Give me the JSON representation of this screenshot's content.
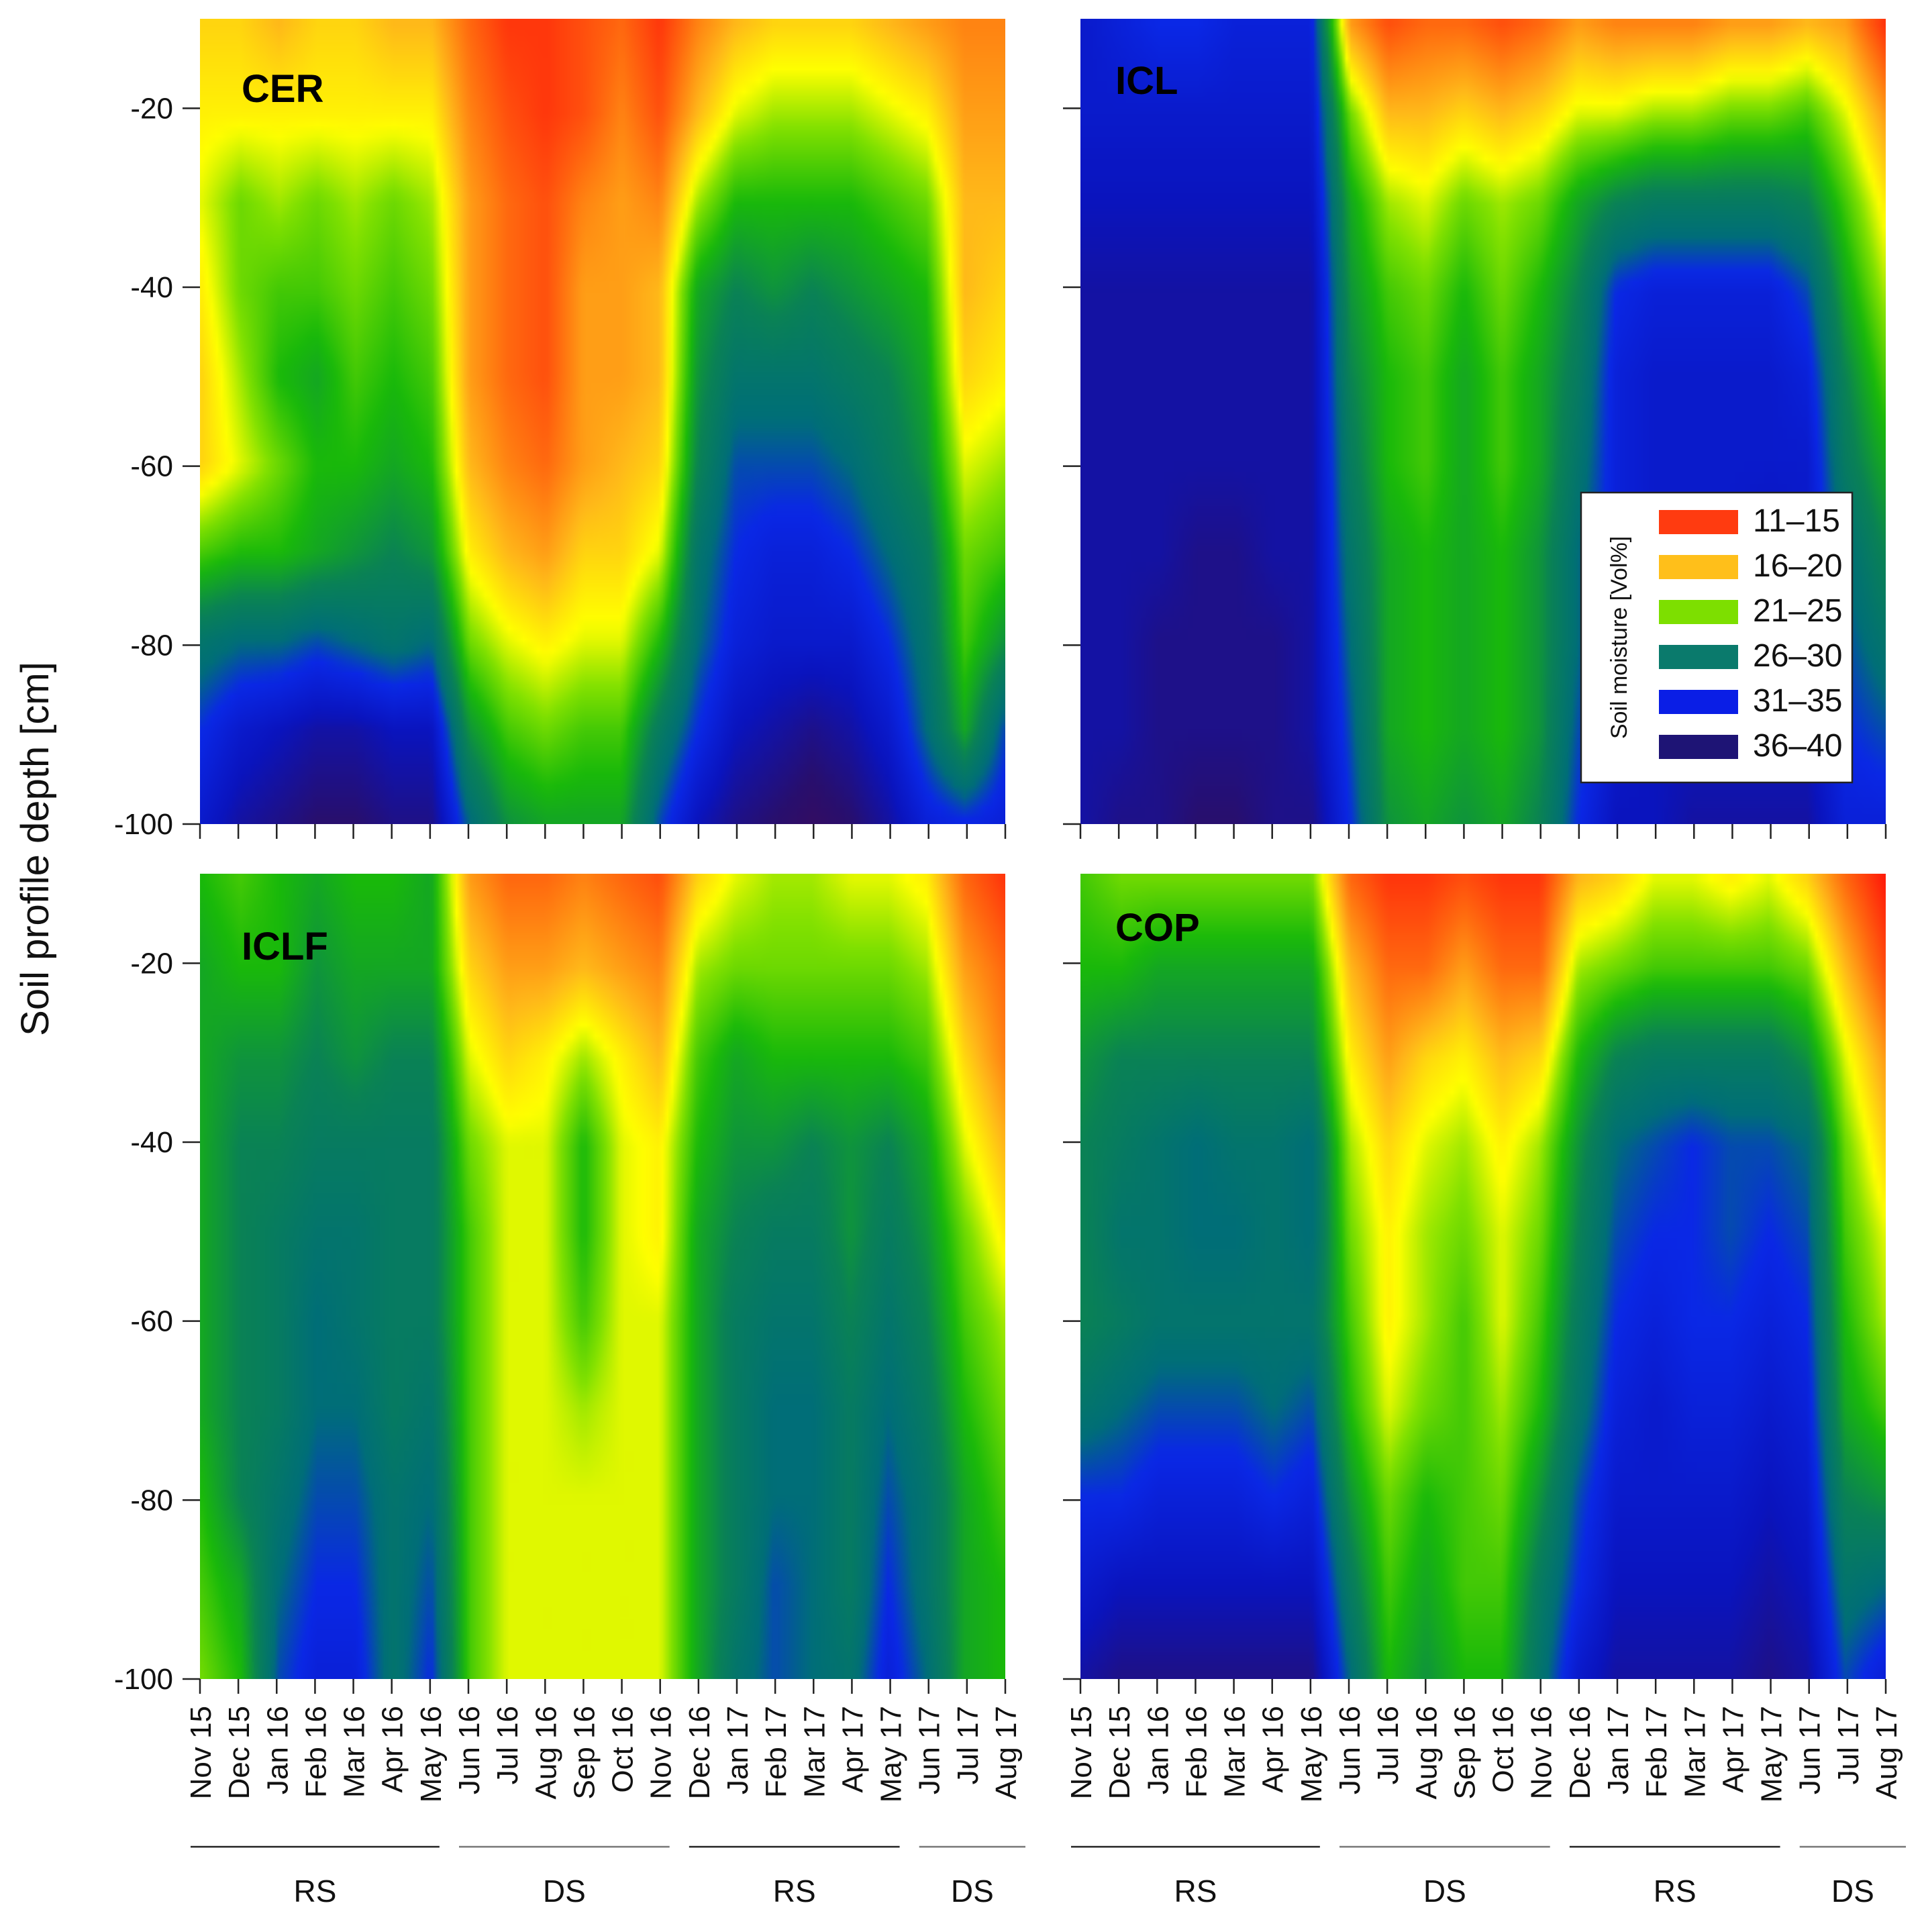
{
  "chart_data": {
    "type": "heatmap",
    "y_axis_title": "Soil profile depth [cm]",
    "yticks": [
      -20,
      -40,
      -60,
      -80,
      -100
    ],
    "ylim": [
      -100,
      -10
    ],
    "depths": [
      -10,
      -20,
      -30,
      -40,
      -50,
      -60,
      -70,
      -80,
      -90,
      -100
    ],
    "months": [
      "Nov 15",
      "Dec 15",
      "Jan 16",
      "Feb 16",
      "Mar 16",
      "Apr 16",
      "May 16",
      "Jun 16",
      "Jul 16",
      "Aug 16",
      "Sep 16",
      "Oct 16",
      "Nov 16",
      "Dec 16",
      "Jan 17",
      "Feb 17",
      "Mar 17",
      "Apr 17",
      "May 17",
      "Jun 17",
      "Jul 17",
      "Aug 17"
    ],
    "seasons": [
      {
        "label": "RS",
        "from": "Nov 15",
        "to": "May 16"
      },
      {
        "label": "DS",
        "from": "Jun 16",
        "to": "Nov 16"
      },
      {
        "label": "RS",
        "from": "Dec 16",
        "to": "May 17"
      },
      {
        "label": "DS",
        "from": "Jun 17",
        "to": "Aug 17"
      }
    ],
    "legend": {
      "title": "Soil moisture [Vol%]",
      "classes": [
        {
          "label": "11–15",
          "color": "#ff3b10"
        },
        {
          "label": "16–20",
          "color": "#ffbf1a"
        },
        {
          "label": "21–25",
          "color": "#7ddf00"
        },
        {
          "label": "26–30",
          "color": "#0a7a6c"
        },
        {
          "label": "31–35",
          "color": "#0a1ee6"
        },
        {
          "label": "36–40",
          "color": "#1e1475"
        }
      ]
    },
    "panels": [
      {
        "name": "CER",
        "values": [
          [
            18,
            18,
            17,
            18,
            18,
            17,
            17,
            14,
            12,
            12,
            13,
            14,
            12,
            15,
            17,
            18,
            18,
            18,
            17,
            16,
            15,
            15
          ],
          [
            19,
            19,
            19,
            19,
            19,
            19,
            19,
            15,
            13,
            12,
            13,
            15,
            13,
            17,
            20,
            21,
            21,
            21,
            20,
            19,
            16,
            16
          ],
          [
            20,
            22,
            21,
            22,
            21,
            22,
            21,
            16,
            14,
            13,
            15,
            16,
            15,
            21,
            24,
            24,
            24,
            24,
            23,
            22,
            17,
            17
          ],
          [
            19,
            22,
            23,
            23,
            22,
            23,
            22,
            16,
            14,
            13,
            16,
            16,
            17,
            25,
            27,
            26,
            27,
            26,
            25,
            24,
            17,
            18
          ],
          [
            18,
            21,
            24,
            25,
            23,
            24,
            23,
            16,
            14,
            13,
            16,
            16,
            17,
            26,
            29,
            29,
            29,
            28,
            27,
            25,
            18,
            19
          ],
          [
            18,
            20,
            22,
            24,
            24,
            25,
            24,
            17,
            15,
            14,
            16,
            17,
            18,
            27,
            31,
            31,
            31,
            30,
            28,
            26,
            20,
            21
          ],
          [
            23,
            24,
            24,
            25,
            26,
            27,
            26,
            19,
            17,
            16,
            18,
            18,
            20,
            29,
            32,
            33,
            33,
            32,
            30,
            28,
            22,
            23
          ],
          [
            29,
            30,
            30,
            31,
            30,
            29,
            30,
            22,
            20,
            19,
            20,
            20,
            24,
            30,
            33,
            34,
            34,
            34,
            32,
            29,
            23,
            26
          ],
          [
            32,
            34,
            35,
            36,
            36,
            35,
            35,
            26,
            23,
            22,
            23,
            23,
            28,
            32,
            35,
            36,
            37,
            36,
            34,
            30,
            25,
            31
          ],
          [
            34,
            36,
            37,
            38,
            38,
            37,
            37,
            30,
            26,
            25,
            25,
            25,
            31,
            35,
            37,
            38,
            39,
            38,
            36,
            33,
            32,
            33
          ]
        ]
      },
      {
        "name": "ICL",
        "values": [
          [
            34,
            33,
            32,
            32,
            33,
            33,
            33,
            16,
            13,
            14,
            14,
            13,
            14,
            16,
            15,
            15,
            15,
            16,
            16,
            17,
            16,
            12
          ],
          [
            34,
            34,
            34,
            34,
            34,
            34,
            34,
            22,
            17,
            17,
            18,
            17,
            18,
            20,
            20,
            21,
            21,
            22,
            22,
            23,
            20,
            16
          ],
          [
            35,
            35,
            35,
            35,
            35,
            35,
            35,
            25,
            21,
            20,
            22,
            21,
            22,
            25,
            27,
            28,
            28,
            28,
            28,
            27,
            23,
            19
          ],
          [
            36,
            36,
            36,
            36,
            36,
            36,
            36,
            26,
            23,
            22,
            24,
            22,
            24,
            27,
            32,
            33,
            33,
            33,
            33,
            31,
            25,
            21
          ],
          [
            36,
            36,
            36,
            36,
            36,
            36,
            36,
            27,
            24,
            23,
            25,
            23,
            25,
            28,
            33,
            34,
            34,
            34,
            34,
            33,
            27,
            23
          ],
          [
            36,
            36,
            36,
            36,
            36,
            36,
            36,
            28,
            24,
            23,
            25,
            23,
            25,
            29,
            33,
            34,
            34,
            34,
            34,
            34,
            28,
            25
          ],
          [
            36,
            36,
            36,
            37,
            37,
            36,
            36,
            29,
            25,
            24,
            25,
            24,
            26,
            30,
            33,
            34,
            34,
            34,
            35,
            34,
            30,
            27
          ],
          [
            36,
            36,
            37,
            37,
            37,
            37,
            36,
            30,
            25,
            24,
            25,
            24,
            26,
            30,
            34,
            34,
            34,
            35,
            35,
            35,
            31,
            29
          ],
          [
            36,
            36,
            37,
            37,
            37,
            37,
            36,
            31,
            25,
            24,
            25,
            24,
            26,
            31,
            34,
            35,
            35,
            35,
            35,
            35,
            32,
            31
          ],
          [
            36,
            37,
            37,
            38,
            38,
            37,
            37,
            32,
            26,
            25,
            26,
            25,
            27,
            32,
            35,
            35,
            36,
            36,
            36,
            36,
            33,
            33
          ]
        ]
      },
      {
        "name": "ICLF",
        "values": [
          [
            24,
            23,
            24,
            25,
            24,
            24,
            25,
            16,
            14,
            14,
            15,
            14,
            13,
            18,
            20,
            21,
            21,
            20,
            20,
            19,
            14,
            12
          ],
          [
            25,
            24,
            24,
            26,
            25,
            25,
            25,
            18,
            16,
            16,
            17,
            16,
            15,
            21,
            22,
            22,
            22,
            22,
            22,
            21,
            16,
            14
          ],
          [
            25,
            26,
            26,
            27,
            26,
            27,
            27,
            20,
            18,
            19,
            21,
            19,
            17,
            23,
            25,
            24,
            24,
            24,
            24,
            23,
            18,
            15
          ],
          [
            25,
            27,
            27,
            28,
            28,
            28,
            28,
            22,
            20,
            20,
            24,
            20,
            19,
            24,
            26,
            26,
            27,
            26,
            27,
            25,
            20,
            17
          ],
          [
            25,
            27,
            28,
            29,
            29,
            28,
            28,
            23,
            20,
            20,
            24,
            20,
            19,
            25,
            27,
            28,
            28,
            26,
            28,
            26,
            22,
            19
          ],
          [
            25,
            27,
            28,
            30,
            29,
            28,
            28,
            23,
            20,
            20,
            23,
            20,
            20,
            25,
            28,
            29,
            29,
            27,
            29,
            27,
            23,
            21
          ],
          [
            25,
            27,
            28,
            30,
            30,
            28,
            29,
            23,
            20,
            20,
            21,
            20,
            20,
            25,
            28,
            30,
            30,
            28,
            30,
            28,
            24,
            22
          ],
          [
            24,
            27,
            29,
            31,
            31,
            29,
            30,
            23,
            20,
            20,
            20,
            20,
            20,
            25,
            28,
            30,
            30,
            28,
            31,
            29,
            25,
            23
          ],
          [
            23,
            25,
            30,
            32,
            32,
            29,
            31,
            23,
            20,
            20,
            20,
            20,
            20,
            25,
            28,
            31,
            30,
            28,
            32,
            29,
            25,
            24
          ],
          [
            22,
            24,
            31,
            33,
            33,
            29,
            32,
            23,
            20,
            20,
            20,
            20,
            20,
            25,
            29,
            31,
            30,
            29,
            33,
            30,
            25,
            24
          ]
        ]
      },
      {
        "name": "COP",
        "values": [
          [
            23,
            22,
            22,
            22,
            22,
            22,
            22,
            14,
            12,
            12,
            13,
            12,
            12,
            17,
            18,
            20,
            20,
            19,
            20,
            18,
            14,
            11
          ],
          [
            24,
            24,
            25,
            25,
            25,
            25,
            25,
            17,
            14,
            14,
            16,
            14,
            14,
            21,
            22,
            23,
            23,
            23,
            23,
            22,
            17,
            13
          ],
          [
            26,
            27,
            27,
            27,
            27,
            27,
            27,
            19,
            16,
            18,
            19,
            17,
            18,
            24,
            27,
            28,
            28,
            28,
            28,
            26,
            20,
            16
          ],
          [
            27,
            28,
            29,
            30,
            29,
            29,
            30,
            21,
            18,
            20,
            21,
            19,
            21,
            26,
            30,
            31,
            32,
            31,
            31,
            30,
            22,
            18
          ],
          [
            27,
            29,
            29,
            30,
            30,
            29,
            30,
            22,
            19,
            21,
            22,
            20,
            22,
            27,
            31,
            32,
            32,
            31,
            32,
            31,
            23,
            20
          ],
          [
            27,
            28,
            29,
            29,
            29,
            29,
            29,
            23,
            19,
            21,
            23,
            20,
            23,
            28,
            32,
            33,
            32,
            32,
            33,
            32,
            24,
            21
          ],
          [
            29,
            30,
            31,
            31,
            31,
            30,
            31,
            24,
            20,
            22,
            23,
            21,
            24,
            29,
            33,
            34,
            33,
            33,
            34,
            33,
            25,
            23
          ],
          [
            32,
            32,
            33,
            33,
            33,
            32,
            33,
            26,
            22,
            24,
            23,
            22,
            26,
            31,
            34,
            34,
            34,
            34,
            35,
            34,
            27,
            26
          ],
          [
            34,
            35,
            35,
            35,
            35,
            35,
            35,
            28,
            23,
            25,
            23,
            23,
            28,
            32,
            35,
            35,
            35,
            35,
            36,
            35,
            29,
            30
          ],
          [
            36,
            37,
            37,
            37,
            37,
            37,
            37,
            30,
            24,
            26,
            24,
            24,
            29,
            34,
            36,
            36,
            36,
            36,
            37,
            36,
            31,
            33
          ]
        ]
      }
    ]
  }
}
